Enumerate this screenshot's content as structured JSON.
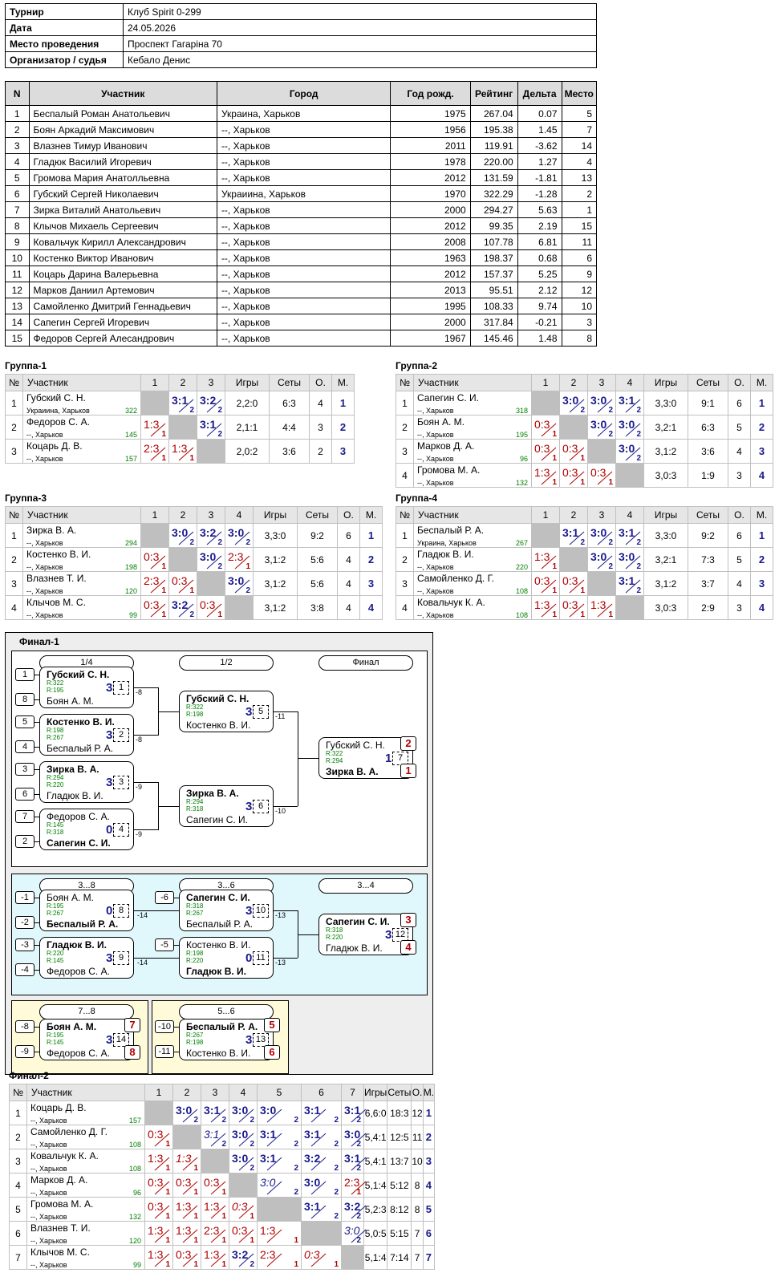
{
  "info": [
    {
      "key": "Турнир",
      "value": "Клуб Spirit 0-299"
    },
    {
      "key": "Дата",
      "value": "24.05.2026"
    },
    {
      "key": "Место проведения",
      "value": "Проспект Гагаріна 70"
    },
    {
      "key": "Организатор / судья",
      "value": "Кебало Денис"
    }
  ],
  "players_headers": [
    "N",
    "Участник",
    "Город",
    "Год рожд.",
    "Рейтинг",
    "Дельта",
    "Место"
  ],
  "players": [
    [
      "1",
      "Беспалый Роман Анатольевич",
      "Украина, Харьков",
      "1975",
      "267.04",
      "0.07",
      "5"
    ],
    [
      "2",
      "Боян Аркадий Максимович",
      "--, Харьков",
      "1956",
      "195.38",
      "1.45",
      "7"
    ],
    [
      "3",
      "Влазнев Тимур Иванович",
      "--, Харьков",
      "2011",
      "119.91",
      "-3.62",
      "14"
    ],
    [
      "4",
      "Гладюк Василий Игоревич",
      "--, Харьков",
      "1978",
      "220.00",
      "1.27",
      "4"
    ],
    [
      "5",
      "Громова Мария Анатолльевна",
      "--, Харьков",
      "2012",
      "131.59",
      "-1.81",
      "13"
    ],
    [
      "6",
      "Губский Сергей Николаевич",
      "Украиина, Харьков",
      "1970",
      "322.29",
      "-1.28",
      "2"
    ],
    [
      "7",
      "Зирка Виталий Анатольевич",
      "--, Харьков",
      "2000",
      "294.27",
      "5.63",
      "1"
    ],
    [
      "8",
      "Клычов Михаель Сергеевич",
      "--, Харьков",
      "2012",
      "99.35",
      "2.19",
      "15"
    ],
    [
      "9",
      "Ковальчук Кирилл Александрович",
      "--, Харьков",
      "2008",
      "107.78",
      "6.81",
      "11"
    ],
    [
      "10",
      "Костенко Виктор Иванович",
      "--, Харьков",
      "1963",
      "198.37",
      "0.68",
      "6"
    ],
    [
      "11",
      "Коцарь Дарина Валерьевна",
      "--, Харьков",
      "2012",
      "157.37",
      "5.25",
      "9"
    ],
    [
      "12",
      "Марков Даниил Артемович",
      "--, Харьков",
      "2013",
      "95.51",
      "2.12",
      "12"
    ],
    [
      "13",
      "Самойленко Дмитрий Геннадьевич",
      "--, Харьков",
      "1995",
      "108.33",
      "9.74",
      "10"
    ],
    [
      "14",
      "Сапегин Сергей Игоревич",
      "--, Харьков",
      "2000",
      "317.84",
      "-0.21",
      "3"
    ],
    [
      "15",
      "Федоров Сергей Алесандрович",
      "--, Харьков",
      "1967",
      "145.46",
      "1.48",
      "8"
    ]
  ],
  "group_headers": [
    "№",
    "Участник",
    "Игры",
    "Сеты",
    "О.",
    "М."
  ],
  "groups": [
    {
      "title": "Группа-1",
      "rows": [
        {
          "n": "1",
          "name": "Губский С. Н.",
          "city": "Украиина, Харьков",
          "rating": "322",
          "res": [
            null,
            [
              "3:1",
              "2",
              "w"
            ],
            [
              "3:2",
              "2",
              "w"
            ]
          ],
          "games": "2,2:0",
          "sets": "6:3",
          "pts": "4",
          "place": "1"
        },
        {
          "n": "2",
          "name": "Федоров С. А.",
          "city": "--, Харьков",
          "rating": "145",
          "res": [
            [
              "1:3",
              "1",
              "l"
            ],
            null,
            [
              "3:1",
              "2",
              "w"
            ]
          ],
          "games": "2,1:1",
          "sets": "4:4",
          "pts": "3",
          "place": "2"
        },
        {
          "n": "3",
          "name": "Коцарь Д. В.",
          "city": "--, Харьков",
          "rating": "157",
          "res": [
            [
              "2:3",
              "1",
              "l"
            ],
            [
              "1:3",
              "1",
              "l"
            ],
            null
          ],
          "games": "2,0:2",
          "sets": "3:6",
          "pts": "2",
          "place": "3"
        }
      ]
    },
    {
      "title": "Группа-2",
      "rows": [
        {
          "n": "1",
          "name": "Сапегин С. И.",
          "city": "--, Харьков",
          "rating": "318",
          "res": [
            null,
            [
              "3:0",
              "2",
              "w"
            ],
            [
              "3:0",
              "2",
              "w"
            ],
            [
              "3:1",
              "2",
              "w"
            ]
          ],
          "games": "3,3:0",
          "sets": "9:1",
          "pts": "6",
          "place": "1"
        },
        {
          "n": "2",
          "name": "Боян А. М.",
          "city": "--, Харьков",
          "rating": "195",
          "res": [
            [
              "0:3",
              "1",
              "l"
            ],
            null,
            [
              "3:0",
              "2",
              "w"
            ],
            [
              "3:0",
              "2",
              "w"
            ]
          ],
          "games": "3,2:1",
          "sets": "6:3",
          "pts": "5",
          "place": "2"
        },
        {
          "n": "3",
          "name": "Марков Д. А.",
          "city": "--, Харьков",
          "rating": "96",
          "res": [
            [
              "0:3",
              "1",
              "l"
            ],
            [
              "0:3",
              "1",
              "l"
            ],
            null,
            [
              "3:0",
              "2",
              "w"
            ]
          ],
          "games": "3,1:2",
          "sets": "3:6",
          "pts": "4",
          "place": "3"
        },
        {
          "n": "4",
          "name": "Громова М. А.",
          "city": "--, Харьков",
          "rating": "132",
          "res": [
            [
              "1:3",
              "1",
              "l"
            ],
            [
              "0:3",
              "1",
              "l"
            ],
            [
              "0:3",
              "1",
              "l"
            ],
            null
          ],
          "games": "3,0:3",
          "sets": "1:9",
          "pts": "3",
          "place": "4"
        }
      ]
    },
    {
      "title": "Группа-3",
      "rows": [
        {
          "n": "1",
          "name": "Зирка В. А.",
          "city": "--, Харьков",
          "rating": "294",
          "res": [
            null,
            [
              "3:0",
              "2",
              "w"
            ],
            [
              "3:2",
              "2",
              "w"
            ],
            [
              "3:0",
              "2",
              "w"
            ]
          ],
          "games": "3,3:0",
          "sets": "9:2",
          "pts": "6",
          "place": "1"
        },
        {
          "n": "2",
          "name": "Костенко В. И.",
          "city": "--, Харьков",
          "rating": "198",
          "res": [
            [
              "0:3",
              "1",
              "l"
            ],
            null,
            [
              "3:0",
              "2",
              "w"
            ],
            [
              "2:3",
              "1",
              "l"
            ]
          ],
          "games": "3,1:2",
          "sets": "5:6",
          "pts": "4",
          "place": "2"
        },
        {
          "n": "3",
          "name": "Влазнев Т. И.",
          "city": "--, Харьков",
          "rating": "120",
          "res": [
            [
              "2:3",
              "1",
              "l"
            ],
            [
              "0:3",
              "1",
              "l"
            ],
            null,
            [
              "3:0",
              "2",
              "w"
            ]
          ],
          "games": "3,1:2",
          "sets": "5:6",
          "pts": "4",
          "place": "3"
        },
        {
          "n": "4",
          "name": "Клычов М. С.",
          "city": "--, Харьков",
          "rating": "99",
          "res": [
            [
              "0:3",
              "1",
              "l"
            ],
            [
              "3:2",
              "2",
              "w"
            ],
            [
              "0:3",
              "1",
              "l"
            ],
            null
          ],
          "games": "3,1:2",
          "sets": "3:8",
          "pts": "4",
          "place": "4"
        }
      ]
    },
    {
      "title": "Группа-4",
      "rows": [
        {
          "n": "1",
          "name": "Беспалый Р. А.",
          "city": "Украина, Харьков",
          "rating": "267",
          "res": [
            null,
            [
              "3:1",
              "2",
              "w"
            ],
            [
              "3:0",
              "2",
              "w"
            ],
            [
              "3:1",
              "2",
              "w"
            ]
          ],
          "games": "3,3:0",
          "sets": "9:2",
          "pts": "6",
          "place": "1"
        },
        {
          "n": "2",
          "name": "Гладюк В. И.",
          "city": "--, Харьков",
          "rating": "220",
          "res": [
            [
              "1:3",
              "1",
              "l"
            ],
            null,
            [
              "3:0",
              "2",
              "w"
            ],
            [
              "3:0",
              "2",
              "w"
            ]
          ],
          "games": "3,2:1",
          "sets": "7:3",
          "pts": "5",
          "place": "2"
        },
        {
          "n": "3",
          "name": "Самойленко Д. Г.",
          "city": "--, Харьков",
          "rating": "108",
          "res": [
            [
              "0:3",
              "1",
              "l"
            ],
            [
              "0:3",
              "1",
              "l"
            ],
            null,
            [
              "3:1",
              "2",
              "w"
            ]
          ],
          "games": "3,1:2",
          "sets": "3:7",
          "pts": "4",
          "place": "3"
        },
        {
          "n": "4",
          "name": "Ковальчук К. А.",
          "city": "--, Харьков",
          "rating": "108",
          "res": [
            [
              "1:3",
              "1",
              "l"
            ],
            [
              "0:3",
              "1",
              "l"
            ],
            [
              "1:3",
              "1",
              "l"
            ],
            null
          ],
          "games": "3,0:3",
          "sets": "2:9",
          "pts": "3",
          "place": "4"
        }
      ]
    }
  ],
  "final1": {
    "title": "Финал-1",
    "rounds": [
      "1/4",
      "1/2",
      "Финал",
      "3...8",
      "3...6",
      "3...4",
      "7...8",
      "5...6"
    ],
    "matches": [
      {
        "p1": "Губский С. Н.",
        "p2": "Боян А. М.",
        "r1": "R:322",
        "r2": "R:195",
        "score": "3:2",
        "num": "1",
        "win": 1
      },
      {
        "p1": "Костенко В. И.",
        "p2": "Беспалый Р. А.",
        "r1": "R:198",
        "r2": "R:267",
        "score": "3:2",
        "num": "2",
        "win": 1
      },
      {
        "p1": "Зирка В. А.",
        "p2": "Гладюк В. И.",
        "r1": "R:294",
        "r2": "R:220",
        "score": "3:1",
        "num": "3",
        "win": 1
      },
      {
        "p1": "Федоров С. А.",
        "p2": "Сапегин С. И.",
        "r1": "R:145",
        "r2": "R:318",
        "score": "0:3",
        "num": "4",
        "win": 2
      },
      {
        "p1": "Губский С. Н.",
        "p2": "Костенко В. И.",
        "r1": "R:322",
        "r2": "R:198",
        "score": "3:0",
        "num": "5",
        "win": 1
      },
      {
        "p1": "Зирка В. А.",
        "p2": "Сапегин С. И.",
        "r1": "R:294",
        "r2": "R:318",
        "score": "3:1",
        "num": "6",
        "win": 1
      },
      {
        "p1": "Губский С. Н.",
        "p2": "Зирка В. А.",
        "r1": "R:322",
        "r2": "R:294",
        "score": "1:3",
        "num": "7",
        "win": 2
      },
      {
        "p1": "Боян А. М.",
        "p2": "Беспалый Р. А.",
        "r1": "R:195",
        "r2": "R:267",
        "score": "0:3",
        "num": "8",
        "win": 2
      },
      {
        "p1": "Гладюк В. И.",
        "p2": "Федоров С. А.",
        "r1": "R:220",
        "r2": "R:145",
        "score": "3:0",
        "num": "9",
        "win": 1
      },
      {
        "p1": "Сапегин С. И.",
        "p2": "Беспалый Р. А.",
        "r1": "R:318",
        "r2": "R:267",
        "score": "3:1",
        "num": "10",
        "win": 1
      },
      {
        "p1": "Костенко В. И.",
        "p2": "Гладюк В. И.",
        "r1": "R:198",
        "r2": "R:220",
        "score": "0:3",
        "num": "11",
        "win": 2
      },
      {
        "p1": "Сапегин С. И.",
        "p2": "Гладюк В. И.",
        "r1": "R:318",
        "r2": "R:220",
        "score": "3:1",
        "num": "12",
        "win": 1
      },
      {
        "p1": "Беспалый Р. А.",
        "p2": "Костенко В. И.",
        "r1": "R:267",
        "r2": "R:198",
        "score": "3:1",
        "num": "13",
        "win": 1
      },
      {
        "p1": "Боян А. М.",
        "p2": "Федоров С. А.",
        "r1": "R:195",
        "r2": "R:145",
        "score": "3:0",
        "num": "14",
        "win": 1
      }
    ],
    "seeds": [
      "1",
      "8",
      "5",
      "4",
      "3",
      "6",
      "7",
      "2",
      "-1",
      "-2",
      "-3",
      "-4",
      "-6",
      "-5",
      "-8",
      "-9",
      "-10",
      "-11"
    ],
    "losers": [
      "-8",
      "-8",
      "-9",
      "-9",
      "-11",
      "-10",
      "-14",
      "-14",
      "-13",
      "-13"
    ],
    "places": [
      "2",
      "1",
      "3",
      "4",
      "7",
      "8",
      "5",
      "6"
    ]
  },
  "final2": {
    "title": "Финал-2",
    "rows": [
      {
        "n": "1",
        "name": "Коцарь Д. В.",
        "city": "--, Харьков",
        "rating": "157",
        "res": [
          null,
          [
            "3:0",
            "2",
            "w"
          ],
          [
            "3:1",
            "2",
            "w"
          ],
          [
            "3:0",
            "2",
            "w"
          ],
          [
            "3:0",
            "2",
            "w"
          ],
          [
            "3:1",
            "2",
            "w"
          ],
          [
            "3:1",
            "2",
            "w"
          ]
        ],
        "games": "6,6:0",
        "sets": "18:3",
        "pts": "12",
        "place": "1"
      },
      {
        "n": "2",
        "name": "Самойленко Д. Г.",
        "city": "--, Харьков",
        "rating": "108",
        "res": [
          [
            "0:3",
            "1",
            "l"
          ],
          null,
          [
            "3:1",
            "2",
            "wi"
          ],
          [
            "3:0",
            "2",
            "w"
          ],
          [
            "3:1",
            "2",
            "w"
          ],
          [
            "3:1",
            "2",
            "w"
          ],
          [
            "3:0",
            "2",
            "w"
          ]
        ],
        "games": "5,4:1",
        "sets": "12:5",
        "pts": "11",
        "place": "2"
      },
      {
        "n": "3",
        "name": "Ковальчук К. А.",
        "city": "--, Харьков",
        "rating": "108",
        "res": [
          [
            "1:3",
            "1",
            "l"
          ],
          [
            "1:3",
            "1",
            "li"
          ],
          null,
          [
            "3:0",
            "2",
            "w"
          ],
          [
            "3:1",
            "2",
            "w"
          ],
          [
            "3:2",
            "2",
            "w"
          ],
          [
            "3:1",
            "2",
            "w"
          ]
        ],
        "games": "5,4:1",
        "sets": "13:7",
        "pts": "10",
        "place": "3"
      },
      {
        "n": "4",
        "name": "Марков Д. А.",
        "city": "--, Харьков",
        "rating": "96",
        "res": [
          [
            "0:3",
            "1",
            "l"
          ],
          [
            "0:3",
            "1",
            "l"
          ],
          [
            "0:3",
            "1",
            "l"
          ],
          null,
          [
            "3:0",
            "2",
            "wi"
          ],
          [
            "3:0",
            "2",
            "w"
          ],
          [
            "2:3",
            "1",
            "l"
          ]
        ],
        "games": "5,1:4",
        "sets": "5:12",
        "pts": "8",
        "place": "4"
      },
      {
        "n": "5",
        "name": "Громова М. А.",
        "city": "--, Харьков",
        "rating": "132",
        "res": [
          [
            "0:3",
            "1",
            "l"
          ],
          [
            "1:3",
            "1",
            "l"
          ],
          [
            "1:3",
            "1",
            "l"
          ],
          [
            "0:3",
            "1",
            "li"
          ],
          null,
          [
            "3:1",
            "2",
            "w"
          ],
          [
            "3:2",
            "2",
            "w"
          ]
        ],
        "games": "5,2:3",
        "sets": "8:12",
        "pts": "8",
        "place": "5"
      },
      {
        "n": "6",
        "name": "Влазнев Т. И.",
        "city": "--, Харьков",
        "rating": "120",
        "res": [
          [
            "1:3",
            "1",
            "l"
          ],
          [
            "1:3",
            "1",
            "l"
          ],
          [
            "2:3",
            "1",
            "l"
          ],
          [
            "0:3",
            "1",
            "l"
          ],
          [
            "1:3",
            "1",
            "l"
          ],
          null,
          [
            "3:0",
            "2",
            "wi"
          ]
        ],
        "games": "5,0:5",
        "sets": "5:15",
        "pts": "7",
        "place": "6"
      },
      {
        "n": "7",
        "name": "Клычов М. С.",
        "city": "--, Харьков",
        "rating": "99",
        "res": [
          [
            "1:3",
            "1",
            "l"
          ],
          [
            "0:3",
            "1",
            "l"
          ],
          [
            "1:3",
            "1",
            "l"
          ],
          [
            "3:2",
            "2",
            "w"
          ],
          [
            "2:3",
            "1",
            "l"
          ],
          [
            "0:3",
            "1",
            "li"
          ],
          null
        ],
        "games": "5,1:4",
        "sets": "7:14",
        "pts": "7",
        "place": "7"
      }
    ]
  }
}
